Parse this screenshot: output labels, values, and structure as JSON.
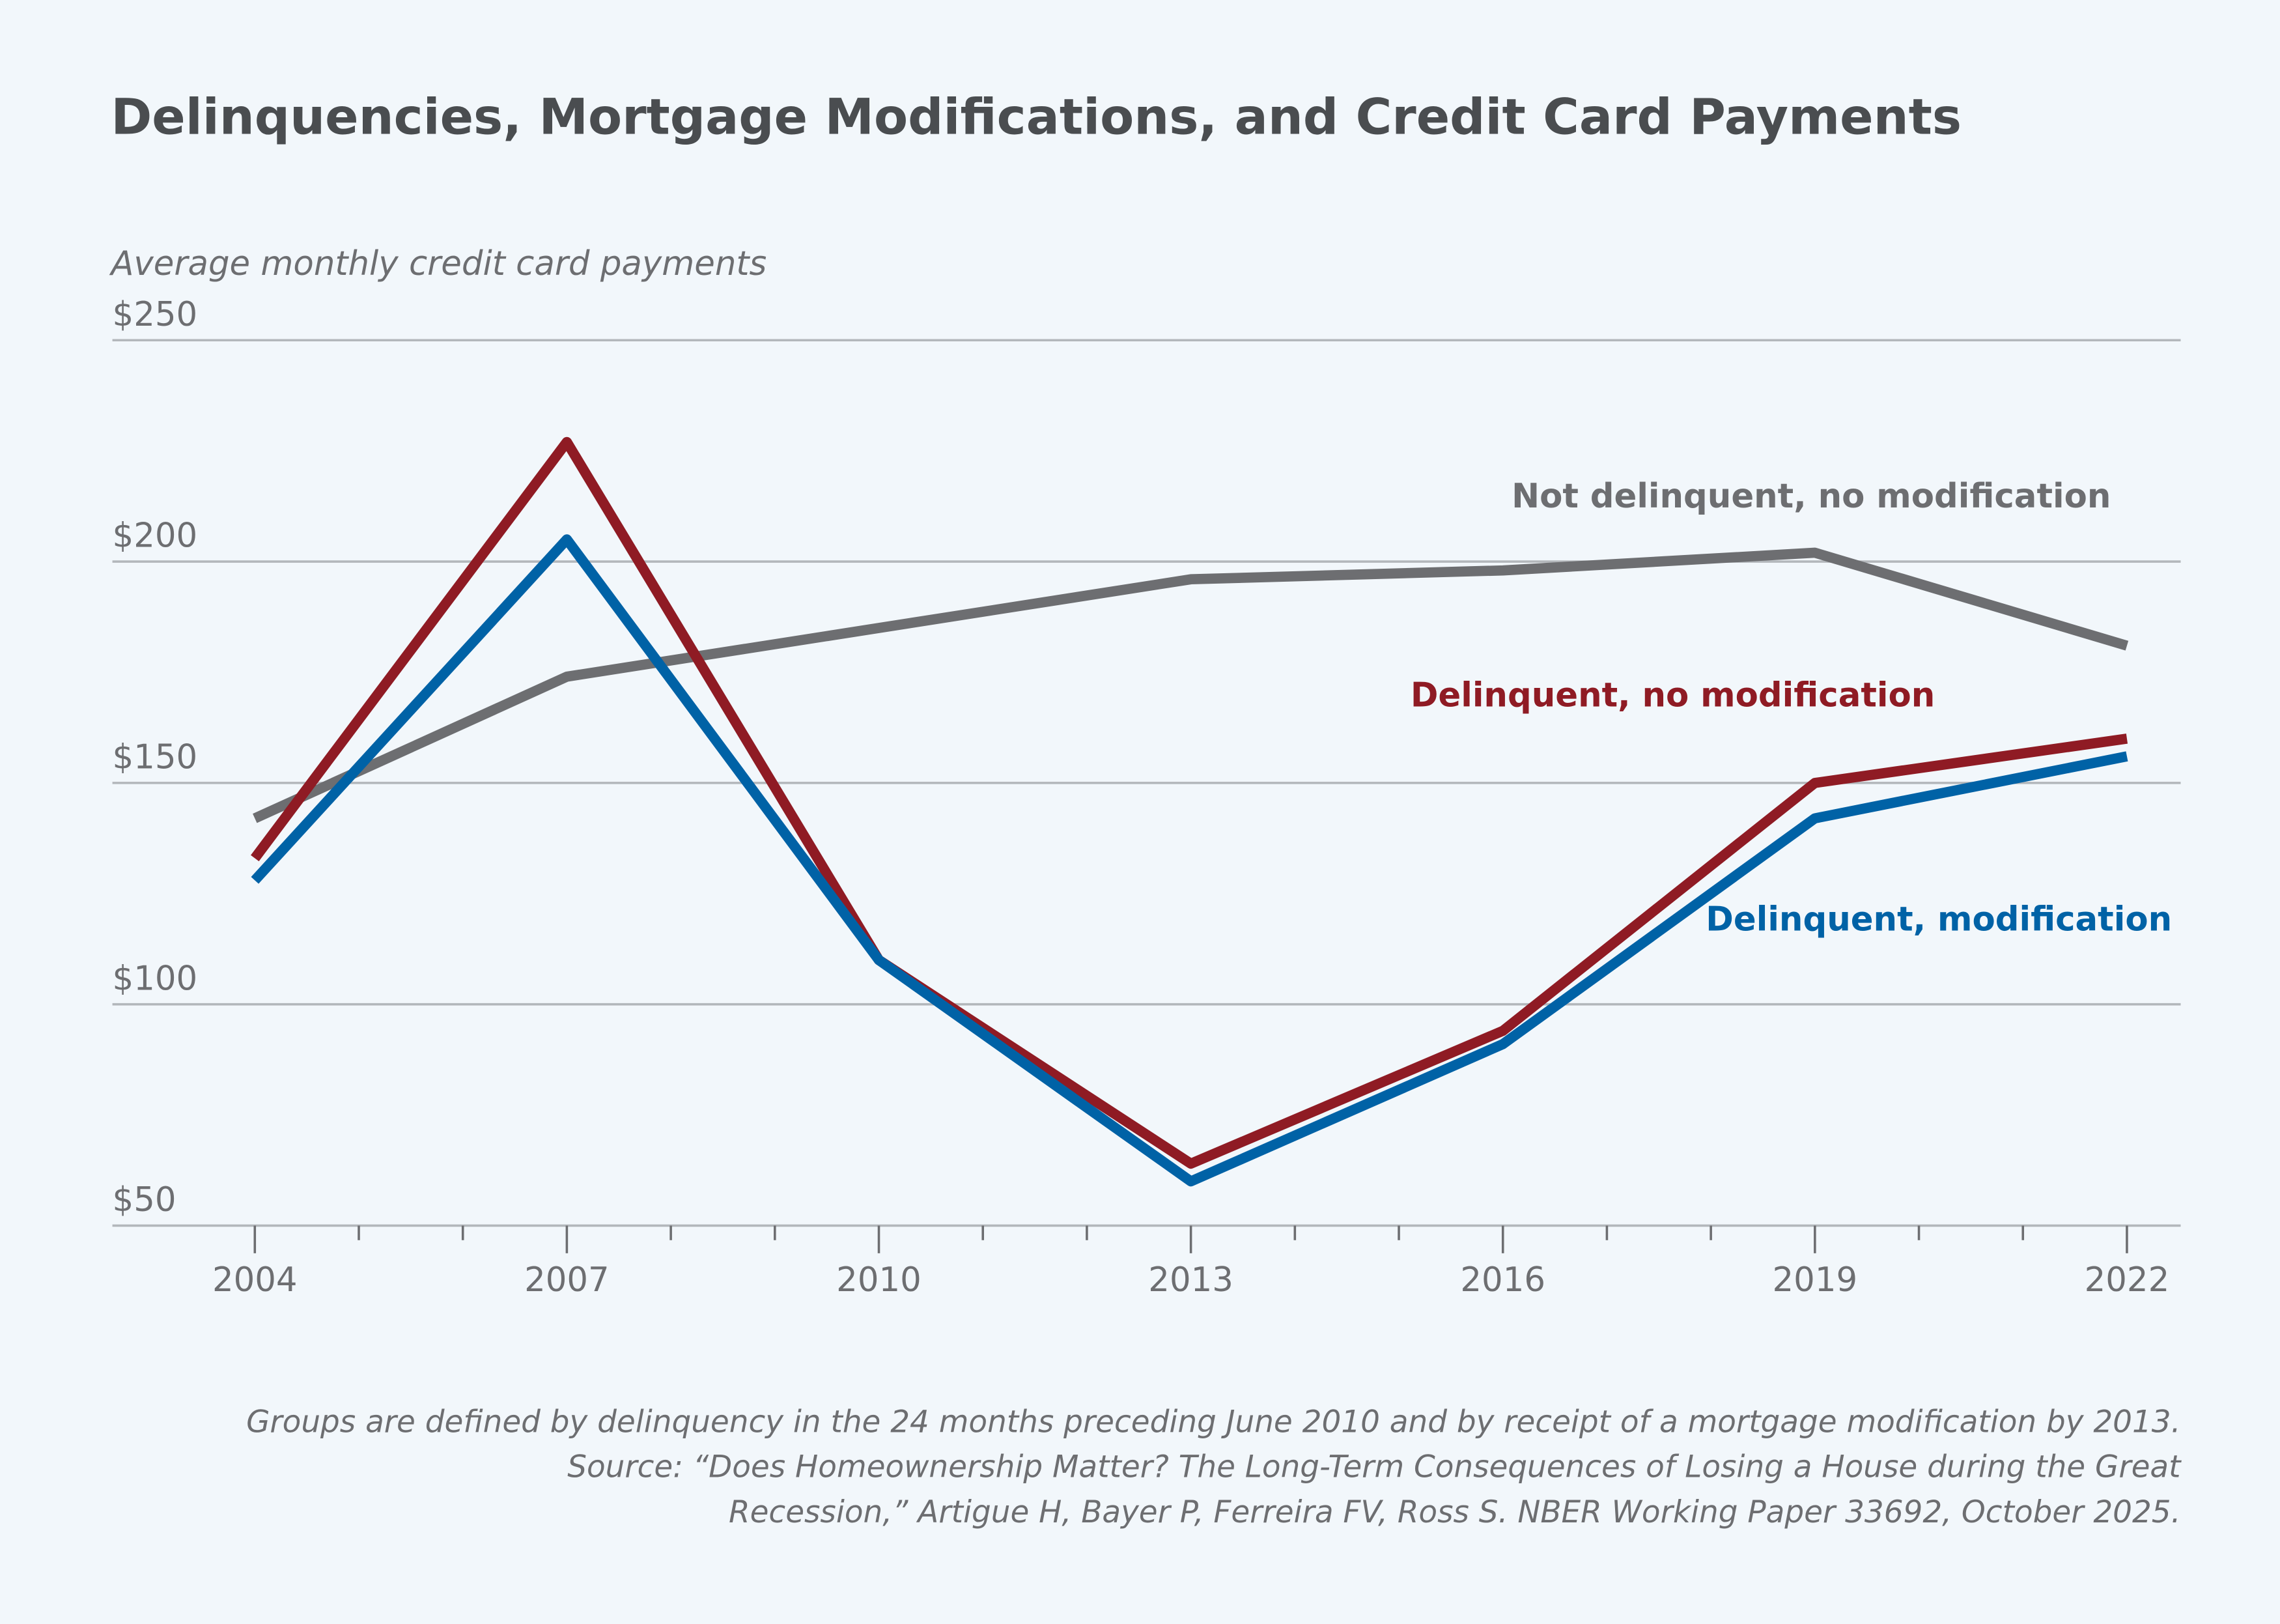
{
  "chart_data": {
    "type": "line",
    "title": "Delinquencies, Mortgage Modifications, and Credit Card Payments",
    "ylabel": "Average monthly credit card payments",
    "xlabel": "",
    "ylim": [
      50,
      250
    ],
    "yticks": [
      50,
      100,
      150,
      200,
      250
    ],
    "ytick_labels": [
      "$50",
      "$100",
      "$150",
      "$200",
      "$250"
    ],
    "xlim": [
      2004,
      2022
    ],
    "xticks": [
      2004,
      2007,
      2010,
      2013,
      2016,
      2019,
      2022
    ],
    "xtick_labels": [
      "2004",
      "2007",
      "2010",
      "2013",
      "2016",
      "2019",
      "2022"
    ],
    "grid": "horizontal",
    "x": [
      2004,
      2007,
      2010,
      2013,
      2016,
      2019,
      2022
    ],
    "series": [
      {
        "name": "Not delinquent, no modification",
        "color": "#6d6e71",
        "values": [
          142,
          174,
          185,
          196,
          198,
          202,
          181
        ]
      },
      {
        "name": "Delinquent, no modification",
        "color": "#8f1b24",
        "values": [
          133,
          227,
          110,
          64,
          94,
          150,
          160
        ]
      },
      {
        "name": "Delinquent, modification",
        "color": "#0062a6",
        "values": [
          128,
          205,
          110,
          60,
          91,
          142,
          156
        ]
      }
    ],
    "notes": [
      "Groups are defined by delinquency in the 24 months preceding June 2010 and by receipt of a mortgage modification by 2013.",
      "Source: “Does Homeownership Matter? The Long-Term Consequences of Losing a House during the Great",
      "Recession,” Artigue H, Bayer P, Ferreira FV, Ross S. NBER Working Paper 33692, October 2025."
    ]
  }
}
